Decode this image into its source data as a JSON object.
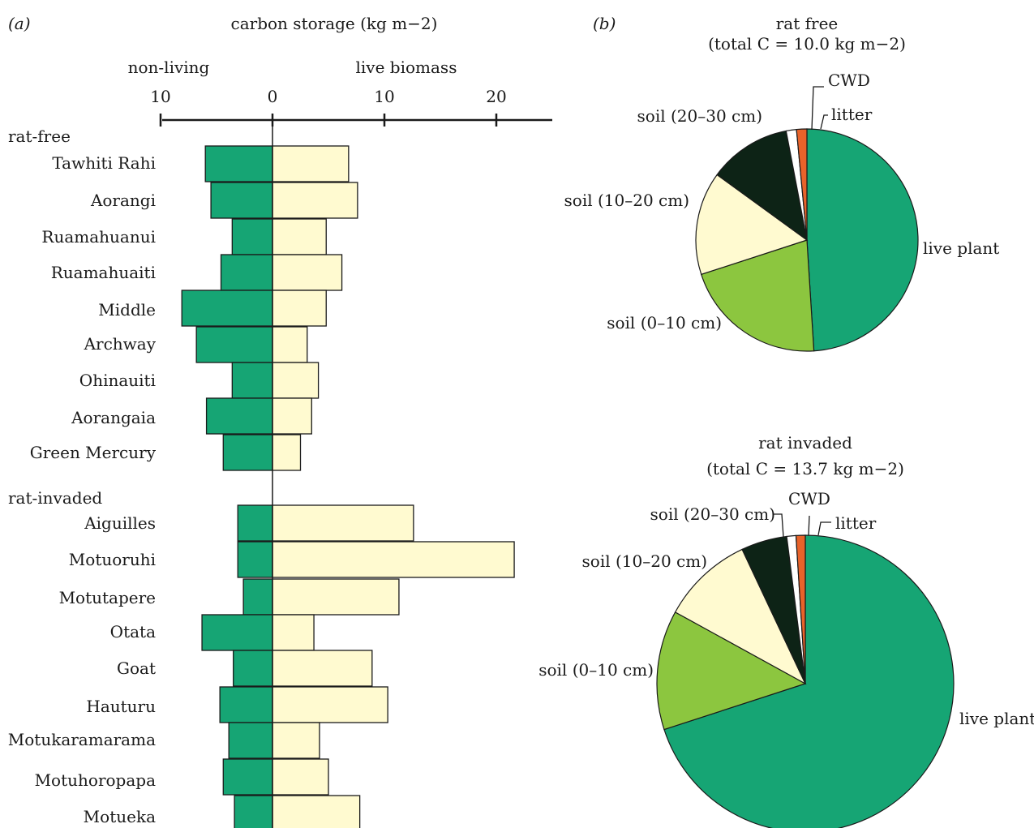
{
  "figure": {
    "panel_a_label": "(a)",
    "panel_b_label": "(b)"
  },
  "chart_data": [
    {
      "type": "bar",
      "orientation": "horizontal",
      "title": "carbon storage (kg m−2)",
      "left_label": "non-living",
      "right_label": "live biomass",
      "ticks": [
        {
          "value": -10,
          "label": "10"
        },
        {
          "value": 0,
          "label": "0"
        },
        {
          "value": 10,
          "label": "10"
        },
        {
          "value": 20,
          "label": "20"
        }
      ],
      "xlim": [
        -10,
        25
      ],
      "groups": [
        {
          "name": "rat-free",
          "categories": [
            "Tawhiti Rahi",
            "Aorangi",
            "Ruamahuanui",
            "Ruamahuaiti",
            "Middle",
            "Archway",
            "Ohinauiti",
            "Aorangaia",
            "Green Mercury"
          ],
          "non_living": [
            6.0,
            5.5,
            3.6,
            4.6,
            8.1,
            6.8,
            3.6,
            5.9,
            4.4
          ],
          "live_biomass": [
            6.8,
            7.6,
            4.8,
            6.2,
            4.8,
            3.1,
            4.1,
            3.5,
            2.5
          ]
        },
        {
          "name": "rat-invaded",
          "categories": [
            "Aiguilles",
            "Motuoruhi",
            "Motutapere",
            "Otata",
            "Goat",
            "Hauturu",
            "Motukaramarama",
            "Motuhoropapa",
            "Motueka"
          ],
          "non_living": [
            3.1,
            3.1,
            2.6,
            6.3,
            3.5,
            4.7,
            3.9,
            4.4,
            3.4
          ],
          "live_biomass": [
            12.6,
            21.6,
            11.3,
            3.7,
            8.9,
            10.3,
            4.2,
            5.0,
            7.8
          ]
        }
      ],
      "colors": {
        "non_living": "#16a574",
        "live_biomass": "#fffad0"
      }
    },
    {
      "type": "pie",
      "title": "rat free",
      "subtitle": "(total C = 10.0 kg m−2)",
      "slices": [
        {
          "name": "live plant",
          "fraction": 0.49,
          "color": "#16a574"
        },
        {
          "name": "soil (0–10 cm)",
          "fraction": 0.21,
          "color": "#8cc63f"
        },
        {
          "name": "soil (10–20 cm)",
          "fraction": 0.15,
          "color": "#fffad0"
        },
        {
          "name": "soil (20–30 cm)",
          "fraction": 0.12,
          "color": "#0d2316"
        },
        {
          "name": "CWD",
          "fraction": 0.015,
          "color": "#ffffff"
        },
        {
          "name": "litter",
          "fraction": 0.015,
          "color": "#e8632a"
        }
      ]
    },
    {
      "type": "pie",
      "title": "rat invaded",
      "subtitle": "(total C = 13.7 kg m−2)",
      "slices": [
        {
          "name": "live plant",
          "fraction": 0.7,
          "color": "#16a574"
        },
        {
          "name": "soil (0–10 cm)",
          "fraction": 0.13,
          "color": "#8cc63f"
        },
        {
          "name": "soil (10–20 cm)",
          "fraction": 0.1,
          "color": "#fffad0"
        },
        {
          "name": "soil (20–30 cm)",
          "fraction": 0.05,
          "color": "#0d2316"
        },
        {
          "name": "CWD",
          "fraction": 0.01,
          "color": "#ffffff"
        },
        {
          "name": "litter",
          "fraction": 0.01,
          "color": "#e8632a"
        }
      ]
    }
  ]
}
